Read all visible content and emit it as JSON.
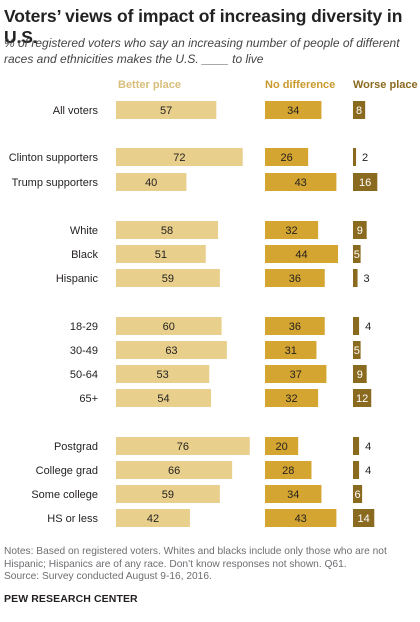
{
  "title": "Voters’ views of impact of increasing diversity in U.S.",
  "subtitle": "% of registered voters who say an increasing number of people of different races and ethnicities makes the U.S. ____ to live",
  "colors": {
    "better": "#e8cf8c",
    "same": "#d4a531",
    "worse": "#8a6a1f",
    "better_header": "#d8be7a",
    "same_header": "#c9992b",
    "worse_header": "#8a6a1f",
    "text": "#231f20"
  },
  "chart_data": {
    "type": "bar",
    "orientation": "horizontal",
    "stacking": "side-by-side panels",
    "series": [
      {
        "name": "Better place",
        "values": [
          57,
          72,
          40,
          58,
          51,
          59,
          60,
          63,
          53,
          54,
          76,
          66,
          59,
          42
        ]
      },
      {
        "name": "No difference",
        "values": [
          34,
          26,
          43,
          32,
          44,
          36,
          36,
          31,
          37,
          32,
          20,
          28,
          34,
          43
        ]
      },
      {
        "name": "Worse place",
        "values": [
          8,
          2,
          16,
          9,
          5,
          3,
          4,
          5,
          9,
          12,
          4,
          4,
          6,
          14
        ]
      }
    ],
    "groups": [
      [
        "All voters"
      ],
      [
        "Clinton supporters",
        "Trump supporters"
      ],
      [
        "White",
        "Black",
        "Hispanic"
      ],
      [
        "18-29",
        "30-49",
        "50-64",
        "65+"
      ],
      [
        "Postgrad",
        "College grad",
        "Some college",
        "HS or less"
      ]
    ],
    "categories": [
      "All voters",
      "Clinton supporters",
      "Trump supporters",
      "White",
      "Black",
      "Hispanic",
      "18-29",
      "30-49",
      "50-64",
      "65+",
      "Postgrad",
      "College grad",
      "Some college",
      "HS or less"
    ],
    "label_placement": {
      "Worse place": "outside when value is 4 or less"
    }
  },
  "notes": [
    "Notes: Based on registered voters. Whites and blacks include only those who are not Hispanic; Hispanics are of any race. Don’t know responses not shown. Q61.",
    "Source: Survey conducted August 9-16, 2016."
  ],
  "source_org": "PEW RESEARCH CENTER"
}
